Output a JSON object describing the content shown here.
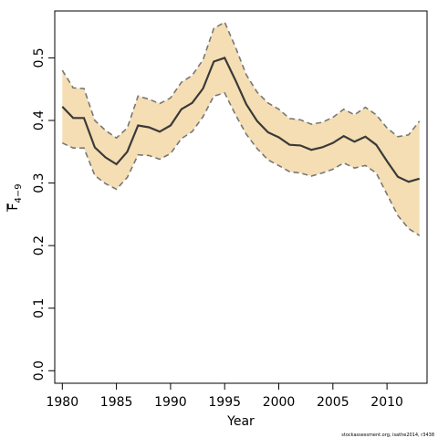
{
  "chart_data": {
    "type": "line",
    "title": "",
    "xlabel": "Year",
    "ylabel": "F",
    "ylabel_sub": "4−9",
    "xlim": [
      1979.3,
      2013.7
    ],
    "ylim": [
      -0.02,
      0.575
    ],
    "x_ticks": [
      1980,
      1985,
      1990,
      1995,
      2000,
      2005,
      2010
    ],
    "x_tick_labels": [
      "1980",
      "1985",
      "1990",
      "1995",
      "2000",
      "2005",
      "2010"
    ],
    "y_ticks": [
      0.0,
      0.1,
      0.2,
      0.3,
      0.4,
      0.5
    ],
    "y_tick_labels": [
      "0.0",
      "0.1",
      "0.2",
      "0.3",
      "0.4",
      "0.5"
    ],
    "grid": false,
    "colors": {
      "band_fill": "#f5deb3",
      "estimate_line": "#3a3a3a",
      "bound_line": "#777777"
    },
    "x": [
      1980,
      1981,
      1982,
      1983,
      1984,
      1985,
      1986,
      1987,
      1988,
      1989,
      1990,
      1991,
      1992,
      1993,
      1994,
      1995,
      1996,
      1997,
      1998,
      1999,
      2000,
      2001,
      2002,
      2003,
      2004,
      2005,
      2006,
      2007,
      2008,
      2009,
      2010,
      2011,
      2012,
      2013
    ],
    "series": [
      {
        "role": "estimate",
        "values": [
          0.422,
          0.404,
          0.404,
          0.357,
          0.341,
          0.33,
          0.35,
          0.392,
          0.389,
          0.382,
          0.392,
          0.418,
          0.428,
          0.451,
          0.494,
          0.5,
          0.464,
          0.426,
          0.399,
          0.381,
          0.373,
          0.361,
          0.36,
          0.353,
          0.357,
          0.364,
          0.375,
          0.366,
          0.374,
          0.361,
          0.335,
          0.31,
          0.302,
          0.307
        ]
      },
      {
        "role": "upper",
        "values": [
          0.48,
          0.452,
          0.451,
          0.4,
          0.384,
          0.372,
          0.388,
          0.439,
          0.434,
          0.427,
          0.436,
          0.461,
          0.472,
          0.497,
          0.547,
          0.557,
          0.517,
          0.473,
          0.445,
          0.428,
          0.418,
          0.403,
          0.401,
          0.394,
          0.397,
          0.405,
          0.418,
          0.409,
          0.421,
          0.409,
          0.388,
          0.374,
          0.377,
          0.399
        ]
      },
      {
        "role": "lower",
        "values": [
          0.364,
          0.356,
          0.356,
          0.312,
          0.299,
          0.29,
          0.309,
          0.345,
          0.344,
          0.338,
          0.347,
          0.371,
          0.382,
          0.406,
          0.439,
          0.444,
          0.409,
          0.378,
          0.355,
          0.337,
          0.328,
          0.318,
          0.316,
          0.311,
          0.316,
          0.322,
          0.332,
          0.324,
          0.328,
          0.316,
          0.282,
          0.248,
          0.227,
          0.216
        ]
      }
    ]
  },
  "footer": {
    "credit": "stockassessment.org, isathe2014, r3438"
  }
}
